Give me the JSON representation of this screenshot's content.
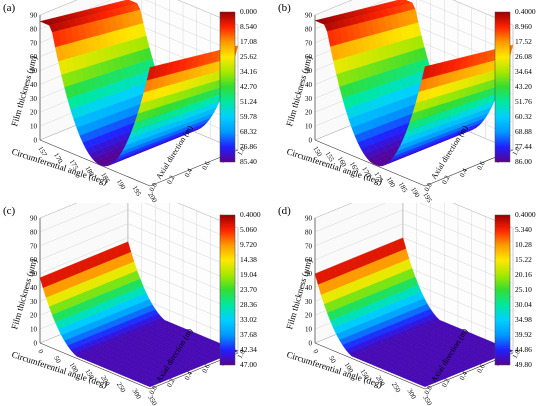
{
  "chart_data": [
    {
      "type": "surface3d",
      "panel": "(a)",
      "zlabel": "Film thickness (μm)",
      "xlabel": "Circumferential angle (deg)",
      "ylabel": "Axial direction (m)",
      "z_ticks": [
        "0",
        "10",
        "20",
        "30",
        "40",
        "50",
        "60",
        "70",
        "80",
        "90"
      ],
      "x_ticks": [
        "157",
        "170",
        "175",
        "180",
        "185",
        "190",
        "195",
        "200"
      ],
      "y_ticks": [
        "0.0",
        "0.2",
        "0.4",
        "0.6",
        "0.8",
        "1.0"
      ],
      "colorbar_ticks": [
        "0.000",
        "8.540",
        "17.08",
        "25.62",
        "34.16",
        "42.70",
        "51.24",
        "59.78",
        "68.32",
        "76.86",
        "85.40"
      ],
      "zrange": [
        0,
        90
      ],
      "min_film_thickness": 0.0,
      "max_film_thickness": 85.4
    },
    {
      "type": "surface3d",
      "panel": "(b)",
      "zlabel": "Film thickness (μm)",
      "xlabel": "Circumferential angle (deg)",
      "ylabel": "Axial direction (m)",
      "z_ticks": [
        "0",
        "10",
        "20",
        "30",
        "40",
        "50",
        "60",
        "70",
        "80",
        "90"
      ],
      "x_ticks": [
        "150",
        "155",
        "160",
        "165",
        "170",
        "175",
        "180",
        "185",
        "190",
        "195"
      ],
      "y_ticks": [
        "0.0",
        "0.2",
        "0.4",
        "0.6",
        "0.8",
        "1.0"
      ],
      "colorbar_ticks": [
        "0.4000",
        "8.960",
        "17.52",
        "26.08",
        "34.64",
        "43.20",
        "51.76",
        "60.32",
        "68.88",
        "77.44",
        "86.00"
      ],
      "zrange": [
        0,
        90
      ],
      "min_film_thickness": 0.4,
      "max_film_thickness": 86.0
    },
    {
      "type": "surface3d",
      "panel": "(c)",
      "zlabel": "Film thickness (μm)",
      "xlabel": "Circumferential angle (deg)",
      "ylabel": "Axial direction (m)",
      "z_ticks": [
        "0",
        "10",
        "20",
        "30",
        "40",
        "50",
        "60",
        "70",
        "80",
        "90"
      ],
      "x_ticks": [
        "0",
        "50",
        "100",
        "150",
        "200",
        "250",
        "300",
        "350"
      ],
      "y_ticks": [
        "0.0",
        "0.2",
        "0.4",
        "0.6",
        "0.8",
        "1.0"
      ],
      "colorbar_ticks": [
        "0.4000",
        "5.060",
        "9.720",
        "14.38",
        "19.04",
        "23.70",
        "28.36",
        "33.02",
        "37.68",
        "42.34",
        "47.00"
      ],
      "zrange": [
        0,
        90
      ],
      "min_film_thickness": 0.4,
      "max_film_thickness": 47.0
    },
    {
      "type": "surface3d",
      "panel": "(d)",
      "zlabel": "Film thickness (μm)",
      "xlabel": "Circumferential angle (deg)",
      "ylabel": "Axial direction (m)",
      "z_ticks": [
        "0",
        "10",
        "20",
        "30",
        "40",
        "50",
        "60",
        "70",
        "80",
        "90"
      ],
      "x_ticks": [
        "0",
        "50",
        "100",
        "150",
        "200",
        "250",
        "300",
        "350"
      ],
      "y_ticks": [
        "0.0",
        "0.2",
        "0.4",
        "0.6",
        "0.8",
        "1.0"
      ],
      "colorbar_ticks": [
        "0.4000",
        "5.340",
        "10.28",
        "15.22",
        "20.16",
        "25.10",
        "30.04",
        "34.98",
        "39.92",
        "44.86",
        "49.80"
      ],
      "zrange": [
        0,
        90
      ],
      "min_film_thickness": 0.4,
      "max_film_thickness": 49.8
    }
  ],
  "colormap": [
    "#5a008f",
    "#2020ff",
    "#0099ff",
    "#00d0ff",
    "#00e8a0",
    "#33dd33",
    "#a8e800",
    "#ffe800",
    "#ff9900",
    "#ff2200",
    "#9a0000"
  ]
}
